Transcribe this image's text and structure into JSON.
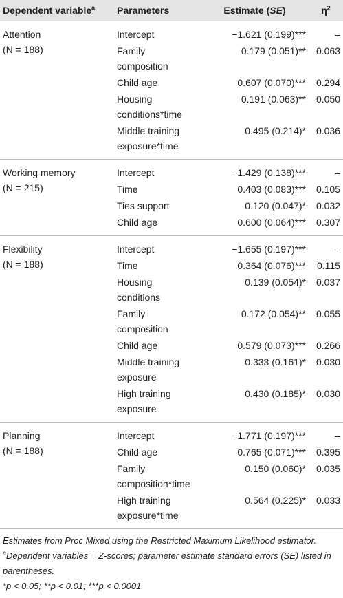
{
  "table": {
    "header": {
      "dependent": {
        "text": "Dependent variable",
        "sup": "a"
      },
      "parameters": "Parameters",
      "estimate": {
        "prefix": "Estimate (",
        "italic": "SE",
        "suffix": ")"
      },
      "eta": {
        "symbol": "η",
        "sup": "2"
      }
    },
    "groups": [
      {
        "name": "Attention",
        "n": "(N = 188)",
        "rows": [
          {
            "parameter": "Intercept",
            "estimate": "−1.621 (0.199)***",
            "eta": "–"
          },
          {
            "parameter": "Family composition",
            "estimate": "0.179 (0.051)**",
            "eta": "0.063"
          },
          {
            "parameter": "Child age",
            "estimate": "0.607 (0.070)***",
            "eta": "0.294"
          },
          {
            "parameter": "Housing conditions*time",
            "estimate": "0.191 (0.063)**",
            "eta": "0.050"
          },
          {
            "parameter": "Middle training exposure*time",
            "estimate": "0.495 (0.214)*",
            "eta": "0.036"
          }
        ]
      },
      {
        "name": "Working memory",
        "n": "(N = 215)",
        "rows": [
          {
            "parameter": "Intercept",
            "estimate": "−1.429 (0.138)***",
            "eta": "–"
          },
          {
            "parameter": "Time",
            "estimate": "0.403 (0.083)***",
            "eta": "0.105"
          },
          {
            "parameter": "Ties support",
            "estimate": "0.120 (0.047)*",
            "eta": "0.032"
          },
          {
            "parameter": "Child age",
            "estimate": "0.600 (0.064)***",
            "eta": "0.307"
          }
        ]
      },
      {
        "name": "Flexibility",
        "n": "(N = 188)",
        "rows": [
          {
            "parameter": "Intercept",
            "estimate": "−1.655 (0.197)***",
            "eta": "–"
          },
          {
            "parameter": "Time",
            "estimate": "0.364 (0.076)***",
            "eta": "0.115"
          },
          {
            "parameter": "Housing conditions",
            "estimate": "0.139 (0.054)*",
            "eta": "0.037"
          },
          {
            "parameter": "Family composition",
            "estimate": "0.172 (0.054)**",
            "eta": "0.055"
          },
          {
            "parameter": "Child age",
            "estimate": "0.579 (0.073)***",
            "eta": "0.266"
          },
          {
            "parameter": "Middle training exposure",
            "estimate": "0.333 (0.161)*",
            "eta": "0.030"
          },
          {
            "parameter": "High training exposure",
            "estimate": "0.430 (0.185)*",
            "eta": "0.030"
          }
        ]
      },
      {
        "name": "Planning",
        "n": "(N = 188)",
        "rows": [
          {
            "parameter": "Intercept",
            "estimate": "−1.771 (0.197)***",
            "eta": "–"
          },
          {
            "parameter": "Child age",
            "estimate": "0.765 (0.071)***",
            "eta": "0.395"
          },
          {
            "parameter": "Family composition*time",
            "estimate": "0.150 (0.060)*",
            "eta": "0.035"
          },
          {
            "parameter": "High training exposure*time",
            "estimate": "0.564 (0.225)*",
            "eta": "0.033"
          }
        ]
      }
    ],
    "notes": [
      {
        "text": "Estimates from Proc Mixed using the Restricted Maximum Likelihood estimator."
      },
      {
        "sup": "a",
        "text": "Dependent variables = Z-scores; parameter estimate standard errors (SE) listed in parentheses."
      },
      {
        "text": "*p < 0.05; **p < 0.01; ***p < 0.0001."
      }
    ]
  }
}
